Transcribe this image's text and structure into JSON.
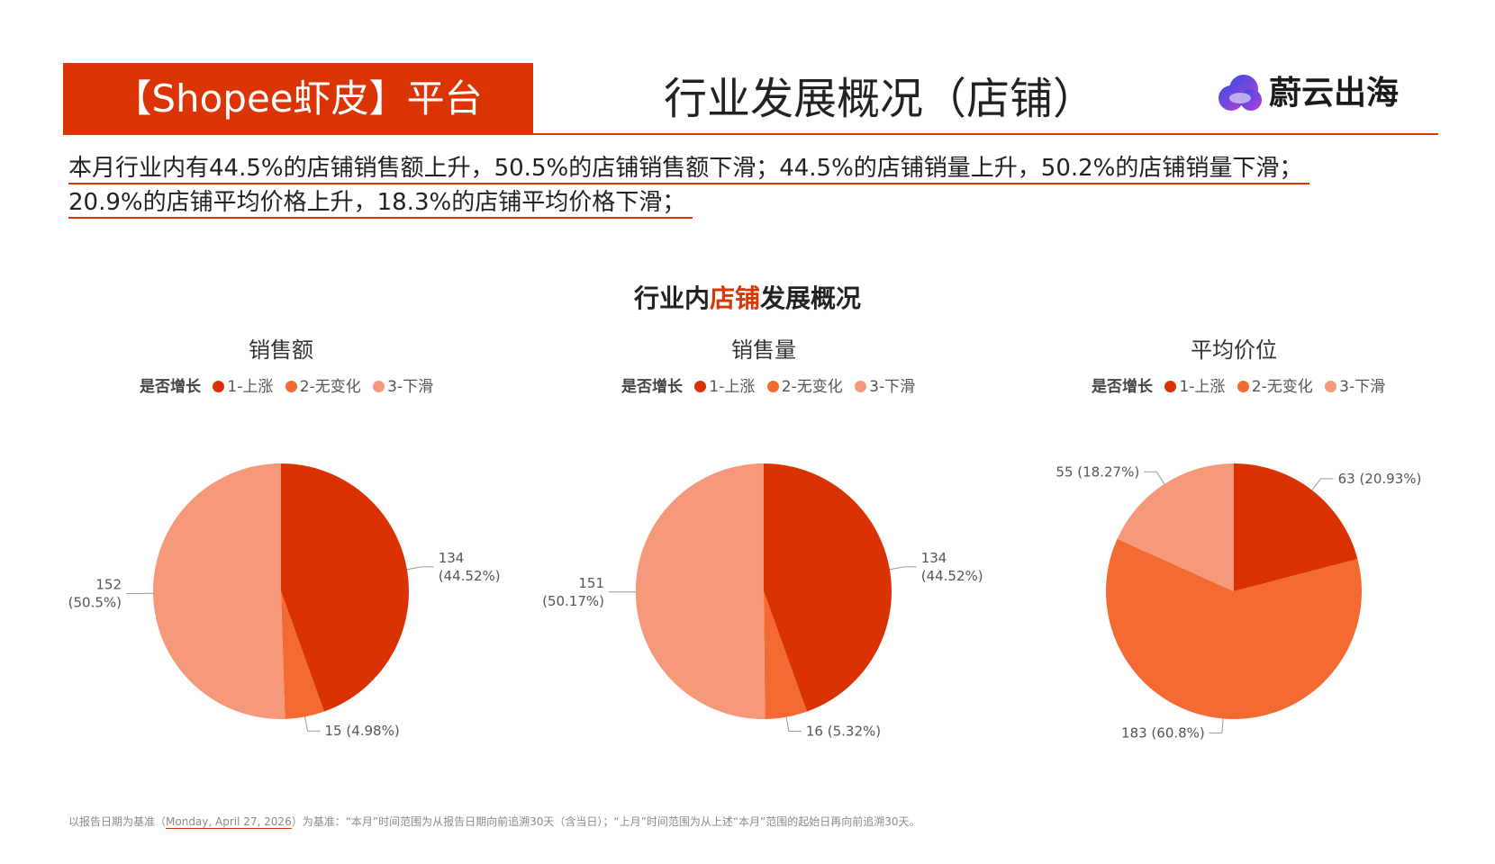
{
  "header": {
    "platform": "【Shopee虾皮】平台",
    "title": "行业发展概况（店铺）",
    "logo_text": "蔚云出海"
  },
  "summary": {
    "line1": "本月行业内有44.5%的店铺销售额上升，50.5%的店铺销售额下滑；44.5%的店铺销量上升，50.2%的店铺销量下滑；",
    "line2": "20.9%的店铺平均价格上升，18.3%的店铺平均价格下滑；"
  },
  "section": {
    "prefix": "行业内",
    "highlight": "店铺",
    "suffix": "发展概况"
  },
  "colors": {
    "accent": "#dc3505",
    "slice_up": "#db3203",
    "slice_flat": "#f46a33",
    "slice_down": "#f6997a"
  },
  "legend": {
    "title": "是否增长",
    "items": [
      "1-上涨",
      "2-无变化",
      "3-下滑"
    ]
  },
  "footnote": {
    "prefix": "以报告日期为基准（",
    "date": "Monday, April 27, 2026",
    "suffix": "）为基准：“本月”时间范围为从报告日期向前追溯30天（含当日）；“上月”时间范围为从上述“本月”范围的起始日再向前追溯30天。"
  },
  "chart_data": [
    {
      "type": "pie",
      "title": "销售额",
      "legend_title": "是否增长",
      "categories": [
        "1-上涨",
        "2-无变化",
        "3-下滑"
      ],
      "values": [
        134,
        15,
        152
      ],
      "labels": [
        [
          "134",
          "(44.52%)"
        ],
        [
          "15 (4.98%)"
        ],
        [
          "152",
          "(50.5%)"
        ]
      ]
    },
    {
      "type": "pie",
      "title": "销售量",
      "legend_title": "是否增长",
      "categories": [
        "1-上涨",
        "2-无变化",
        "3-下滑"
      ],
      "values": [
        134,
        16,
        151
      ],
      "labels": [
        [
          "134",
          "(44.52%)"
        ],
        [
          "16 (5.32%)"
        ],
        [
          "151",
          "(50.17%)"
        ]
      ]
    },
    {
      "type": "pie",
      "title": "平均价位",
      "legend_title": "是否增长",
      "categories": [
        "1-上涨",
        "2-无变化",
        "3-下滑"
      ],
      "values": [
        63,
        183,
        55
      ],
      "labels": [
        [
          "63 (20.93%)"
        ],
        [
          "183 (60.8%)"
        ],
        [
          "55 (18.27%)"
        ]
      ]
    }
  ]
}
